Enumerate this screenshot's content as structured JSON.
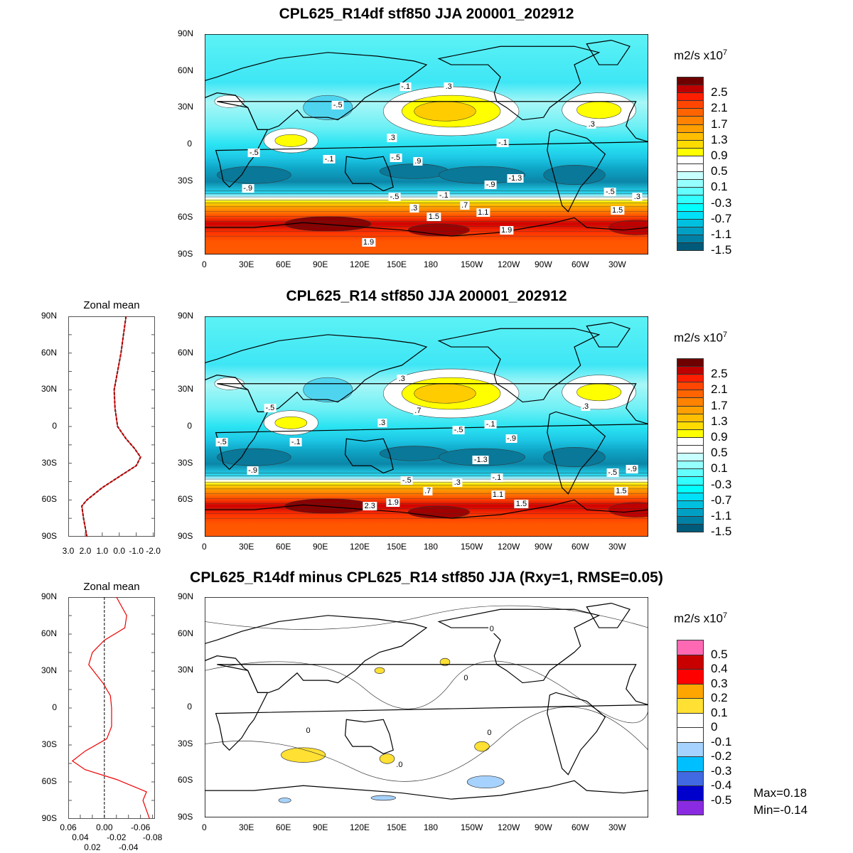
{
  "chart_data": [
    {
      "type": "heatmap",
      "title": "CPL625_R14df stf850 JJA 200001_202912",
      "units": "m2/s",
      "units_exp": "7",
      "units_prefix": "x10",
      "colorbar_labels": [
        "2.5",
        "2.1",
        "1.7",
        "1.3",
        "0.9",
        "0.5",
        "0.1",
        "-0.3",
        "-0.7",
        "-1.1",
        "-1.5"
      ],
      "contour_labels": [
        {
          "t": "-.1",
          "lon": 163,
          "lat": 47
        },
        {
          "t": ".3",
          "lon": 198,
          "lat": 47
        },
        {
          "t": "-.5",
          "lon": 108,
          "lat": 32
        },
        {
          "t": ".3",
          "lon": 314,
          "lat": 16
        },
        {
          "t": ".3",
          "lon": 152,
          "lat": 5
        },
        {
          "t": "-.1",
          "lon": 242,
          "lat": 1
        },
        {
          "t": "-.5",
          "lon": 40,
          "lat": -7
        },
        {
          "t": "-.1",
          "lon": 101,
          "lat": -12
        },
        {
          "t": "-.5",
          "lon": 155,
          "lat": -11
        },
        {
          "t": ".9",
          "lon": 173,
          "lat": -14
        },
        {
          "t": "-1.3",
          "lon": 252,
          "lat": -28
        },
        {
          "t": "-.9",
          "lon": 232,
          "lat": -33
        },
        {
          "t": "-.9",
          "lon": 35,
          "lat": -36
        },
        {
          "t": "-.5",
          "lon": 154,
          "lat": -43
        },
        {
          "t": "-.1",
          "lon": 194,
          "lat": -42
        },
        {
          "t": ".7",
          "lon": 211,
          "lat": -50
        },
        {
          "t": "-.5",
          "lon": 329,
          "lat": -39
        },
        {
          "t": ".3",
          "lon": 351,
          "lat": -43
        },
        {
          "t": ".3",
          "lon": 170,
          "lat": -52
        },
        {
          "t": "1.5",
          "lon": 186,
          "lat": -59
        },
        {
          "t": "1.1",
          "lon": 226,
          "lat": -56
        },
        {
          "t": "1.5",
          "lon": 335,
          "lat": -54
        },
        {
          "t": "1.9",
          "lon": 245,
          "lat": -70
        },
        {
          "t": "1.9",
          "lon": 133,
          "lat": -80
        }
      ]
    },
    {
      "type": "heatmap",
      "title": "CPL625_R14 stf850 JJA 200001_202912",
      "units": "m2/s",
      "units_exp": "7",
      "units_prefix": "x10",
      "colorbar_labels": [
        "2.5",
        "2.1",
        "1.7",
        "1.3",
        "0.9",
        "0.5",
        "0.1",
        "-0.3",
        "-0.7",
        "-1.1",
        "-1.5"
      ],
      "contour_labels": [
        {
          "t": ".3",
          "lon": 160,
          "lat": 39
        },
        {
          "t": ".7",
          "lon": 173,
          "lat": 13
        },
        {
          "t": ".3",
          "lon": 309,
          "lat": 16
        },
        {
          "t": "-.5",
          "lon": 53,
          "lat": 15
        },
        {
          "t": ".3",
          "lon": 144,
          "lat": 3
        },
        {
          "t": "-.5",
          "lon": 206,
          "lat": -3
        },
        {
          "t": "-.1",
          "lon": 232,
          "lat": 2
        },
        {
          "t": "-.5",
          "lon": 14,
          "lat": -13
        },
        {
          "t": "-.1",
          "lon": 74,
          "lat": -13
        },
        {
          "t": "-.9",
          "lon": 249,
          "lat": -10
        },
        {
          "t": "-1.3",
          "lon": 224,
          "lat": -27
        },
        {
          "t": "-.9",
          "lon": 39,
          "lat": -36
        },
        {
          "t": "-.5",
          "lon": 164,
          "lat": -44
        },
        {
          "t": "-.1",
          "lon": 237,
          "lat": -42
        },
        {
          "t": ".3",
          "lon": 205,
          "lat": -46
        },
        {
          "t": "-.5",
          "lon": 331,
          "lat": -38
        },
        {
          "t": "-.9",
          "lon": 347,
          "lat": -35
        },
        {
          "t": ".7",
          "lon": 181,
          "lat": -53
        },
        {
          "t": "1.1",
          "lon": 238,
          "lat": -56
        },
        {
          "t": "1.5",
          "lon": 338,
          "lat": -53
        },
        {
          "t": "1.5",
          "lon": 257,
          "lat": -63
        },
        {
          "t": "1.9",
          "lon": 153,
          "lat": -62
        },
        {
          "t": "2.3",
          "lon": 134,
          "lat": -65
        }
      ],
      "zonal_mean": {
        "title": "Zonal mean",
        "xticks": [
          "3.0",
          "2.0",
          "1.0",
          "0.0",
          "-1.0",
          "-2.0"
        ],
        "xrange": [
          3.0,
          -2.1
        ],
        "lat": [
          90,
          75,
          60,
          45,
          30,
          15,
          0,
          -10,
          -18,
          -25,
          -32,
          -40,
          -50,
          -60,
          -65,
          -75,
          -90
        ],
        "values": [
          -0.4,
          -0.25,
          -0.1,
          0.1,
          0.3,
          0.25,
          0.1,
          -0.4,
          -0.9,
          -1.25,
          -1.0,
          -0.1,
          1.0,
          1.9,
          2.2,
          2.1,
          1.9
        ]
      }
    },
    {
      "type": "heatmap",
      "title": "CPL625_R14df minus CPL625_R14 stf850 JJA (Rxy=1, RMSE=0.05)",
      "units": "m2/s",
      "units_exp": "7",
      "units_prefix": "x10",
      "colorbar_labels": [
        "0.5",
        "0.4",
        "0.3",
        "0.2",
        "0.1",
        "0",
        "-0.1",
        "-0.2",
        "-0.3",
        "-0.4",
        "-0.5"
      ],
      "max_label": "Max=0.18",
      "min_label": "Min=-0.14",
      "contour_labels": [
        {
          "t": "0",
          "lon": 233,
          "lat": 64
        },
        {
          "t": "0",
          "lon": 212,
          "lat": 24
        },
        {
          "t": "0",
          "lon": 84,
          "lat": -19
        },
        {
          "t": "0",
          "lon": 231,
          "lat": -21
        },
        {
          "t": ".0",
          "lon": 158,
          "lat": -47
        }
      ],
      "zonal_mean": {
        "title": "Zonal mean",
        "xticks": [
          "0.06",
          "0.04",
          "0.02",
          "0.00",
          "-0.02",
          "-0.04",
          "-0.06",
          "-0.08"
        ],
        "xrange": [
          0.06,
          -0.084
        ],
        "lat": [
          90,
          75,
          65,
          55,
          45,
          35,
          20,
          10,
          0,
          -15,
          -25,
          -35,
          -43,
          -50,
          -58,
          -68,
          -75,
          -90
        ],
        "values": [
          -0.02,
          -0.037,
          -0.034,
          0.0,
          0.02,
          0.026,
          0.002,
          -0.01,
          -0.012,
          -0.012,
          -0.004,
          0.032,
          0.053,
          0.032,
          -0.02,
          -0.07,
          -0.064,
          -0.075
        ]
      }
    }
  ],
  "axes": {
    "lon_ticks": [
      "0",
      "30E",
      "60E",
      "90E",
      "120E",
      "150E",
      "180",
      "150W",
      "120W",
      "90W",
      "60W",
      "30W"
    ],
    "lat_ticks": [
      "90N",
      "60N",
      "30N",
      "0",
      "30S",
      "60S",
      "90S"
    ]
  },
  "colors": {
    "main": [
      "#6e0000",
      "#be0000",
      "#ff1e00",
      "#ff4600",
      "#ff6400",
      "#ff8200",
      "#ffa000",
      "#ffbe00",
      "#ffdc00",
      "#ffff00",
      "#ffffff",
      "#ffffff",
      "#c8ffff",
      "#96ffff",
      "#64ffff",
      "#32ffff",
      "#00ffff",
      "#00e0f8",
      "#00c0e0",
      "#00a0c4",
      "#0080a4",
      "#005a7a"
    ],
    "diff": [
      "#ff69b4",
      "#c80000",
      "#ff0000",
      "#ffa500",
      "#ffe033",
      "#ffffff",
      "#ffffff",
      "#a6d2ff",
      "#00bfff",
      "#4169e1",
      "#0000cd",
      "#8a2be2"
    ]
  }
}
